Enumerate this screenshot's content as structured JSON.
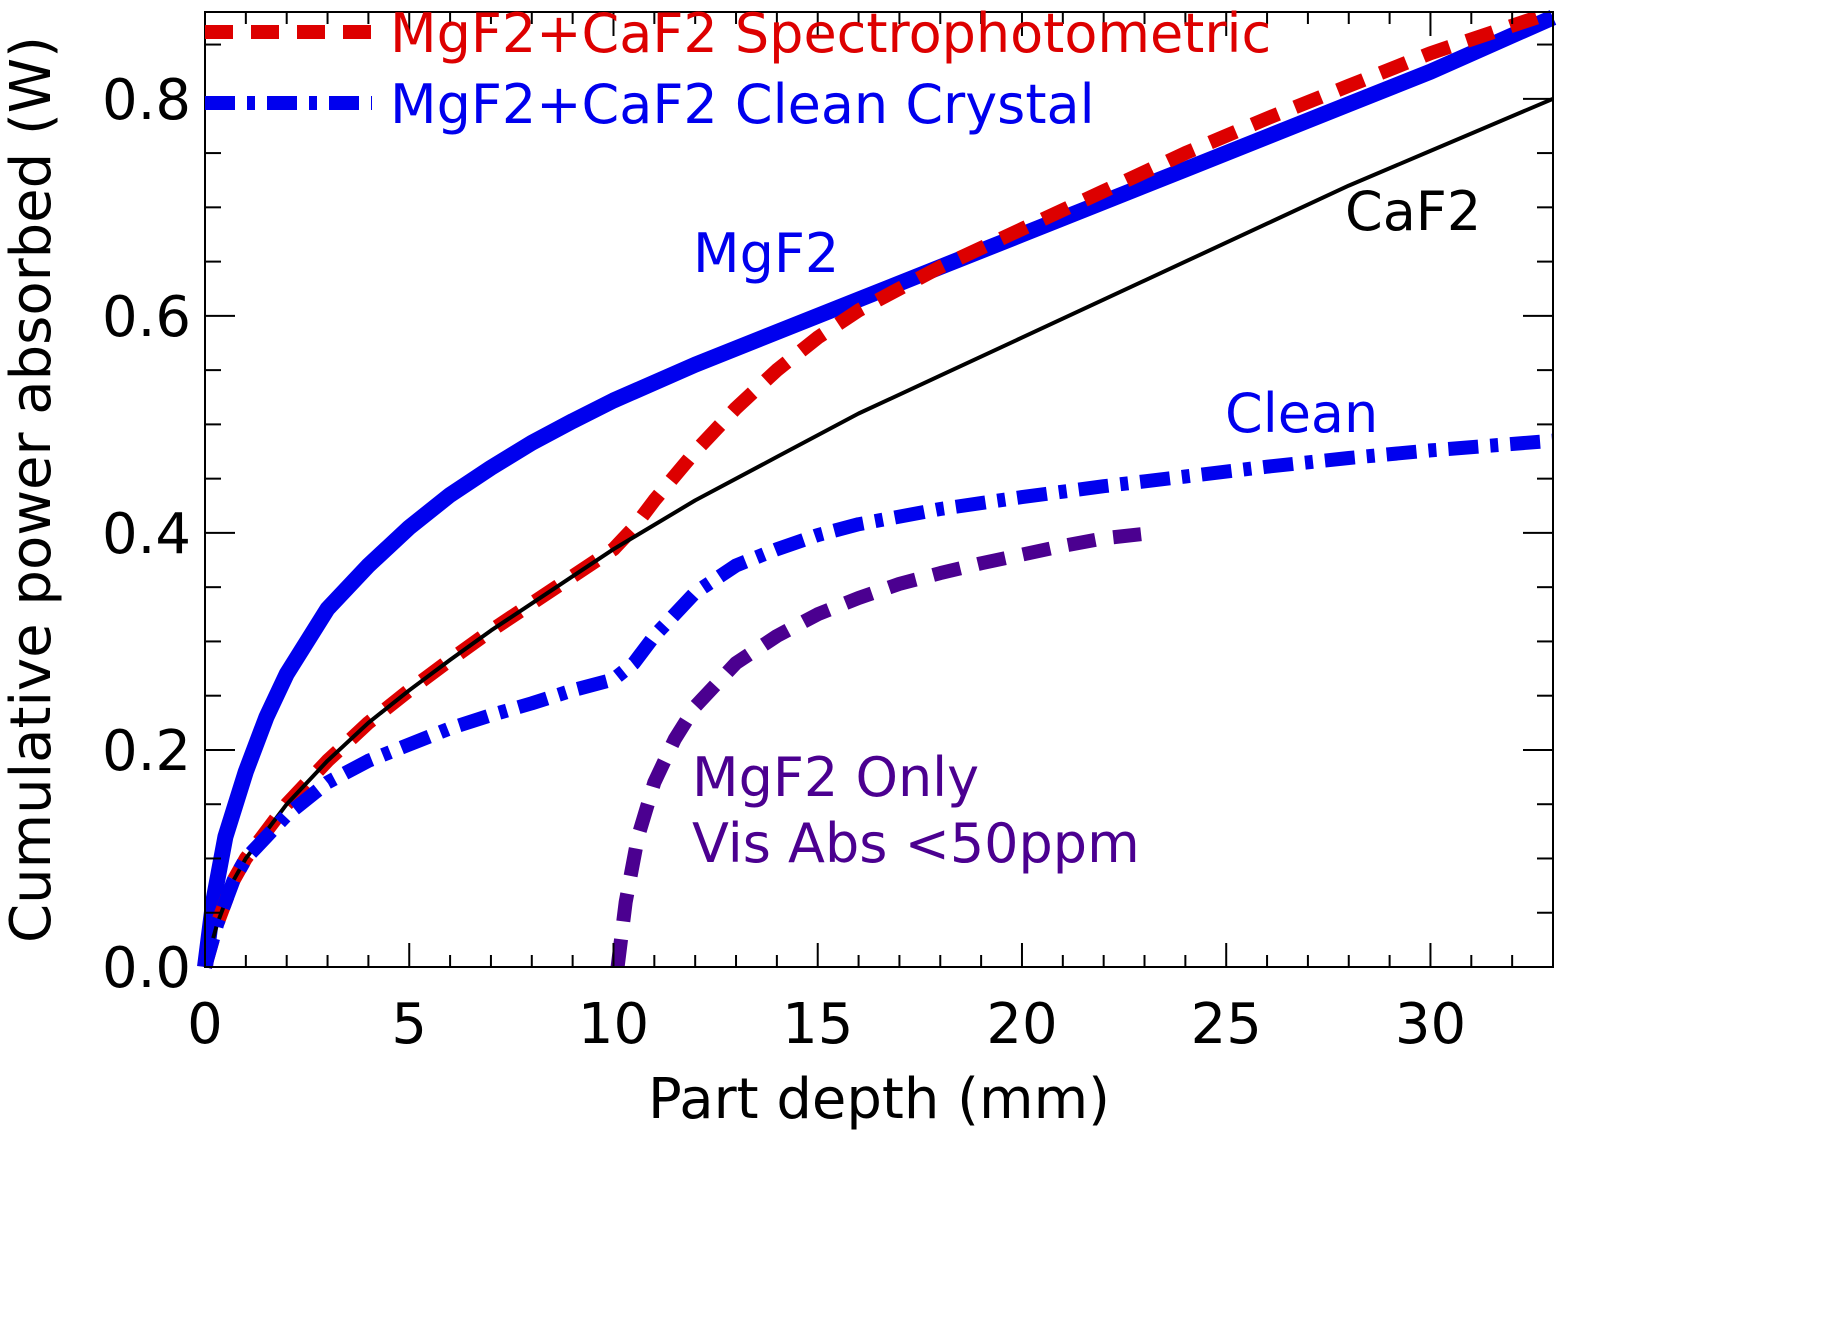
{
  "chart_data": {
    "type": "line",
    "title": "",
    "xlabel": "Part depth (mm)",
    "ylabel": "Cumulative power absorbed (W)",
    "xlim": [
      0,
      33
    ],
    "ylim": [
      0,
      0.88
    ],
    "x_ticks": [
      0,
      5,
      10,
      15,
      20,
      25,
      30
    ],
    "x_tick_labels": [
      "0",
      "5",
      "10",
      "15",
      "20",
      "25",
      "30"
    ],
    "y_ticks": [
      0.0,
      0.2,
      0.4,
      0.6,
      0.8
    ],
    "y_tick_labels": [
      "0.0",
      "0.2",
      "0.4",
      "0.6",
      "0.8"
    ],
    "legend": {
      "placement": "top-left",
      "entries": [
        {
          "label": "MgF2+CaF2 Spectrophotometric",
          "color": "#dd0000",
          "style": "dashed"
        },
        {
          "label": "MgF2+CaF2 Clean Crystal",
          "color": "#0000ee",
          "style": "dash-dot"
        }
      ]
    },
    "series": [
      {
        "name": "MgF2",
        "color": "#0000ee",
        "style": "solid-thick",
        "x": [
          0,
          0.2,
          0.5,
          1,
          1.5,
          2,
          3,
          4,
          5,
          6,
          7,
          8,
          9,
          10,
          12,
          14,
          16,
          18,
          20,
          22,
          24,
          26,
          28,
          30,
          33
        ],
        "y": [
          0,
          0.06,
          0.12,
          0.18,
          0.23,
          0.27,
          0.33,
          0.37,
          0.405,
          0.435,
          0.46,
          0.483,
          0.503,
          0.522,
          0.555,
          0.585,
          0.615,
          0.645,
          0.675,
          0.705,
          0.735,
          0.765,
          0.795,
          0.825,
          0.875
        ]
      },
      {
        "name": "MgF2+CaF2 Spectrophotometric",
        "color": "#dd0000",
        "style": "dashed",
        "x": [
          0,
          0.3,
          0.7,
          1,
          2,
          3,
          4,
          5,
          6,
          7,
          8,
          9,
          10,
          10.5,
          11,
          12,
          13,
          14,
          15,
          16,
          17,
          18,
          20,
          22,
          24,
          26,
          28,
          30,
          33
        ],
        "y": [
          0,
          0.04,
          0.08,
          0.1,
          0.15,
          0.19,
          0.225,
          0.255,
          0.283,
          0.31,
          0.335,
          0.36,
          0.385,
          0.405,
          0.43,
          0.475,
          0.515,
          0.55,
          0.58,
          0.605,
          0.625,
          0.645,
          0.68,
          0.715,
          0.75,
          0.782,
          0.812,
          0.842,
          0.88
        ]
      },
      {
        "name": "CaF2",
        "color": "#000000",
        "style": "solid-thin",
        "x": [
          0,
          0.3,
          0.7,
          1,
          2,
          3,
          4,
          5,
          6,
          7,
          8,
          9,
          10,
          12,
          14,
          16,
          18,
          20,
          22,
          24,
          26,
          28,
          30,
          33
        ],
        "y": [
          0,
          0.04,
          0.08,
          0.1,
          0.15,
          0.19,
          0.225,
          0.255,
          0.283,
          0.31,
          0.335,
          0.36,
          0.385,
          0.43,
          0.47,
          0.51,
          0.545,
          0.58,
          0.615,
          0.65,
          0.685,
          0.72,
          0.752,
          0.8
        ]
      },
      {
        "name": "MgF2+CaF2 Clean Crystal",
        "color": "#0000ee",
        "style": "dash-dot",
        "x": [
          0,
          0.3,
          0.7,
          1,
          1.5,
          2,
          3,
          4,
          5,
          6,
          7,
          8,
          9,
          10,
          10.5,
          11,
          12,
          13,
          14,
          15,
          16,
          18,
          20,
          22,
          24,
          26,
          28,
          30,
          33
        ],
        "y": [
          0,
          0.04,
          0.08,
          0.1,
          0.12,
          0.14,
          0.17,
          0.19,
          0.205,
          0.22,
          0.232,
          0.243,
          0.255,
          0.265,
          0.28,
          0.305,
          0.345,
          0.37,
          0.385,
          0.398,
          0.408,
          0.422,
          0.433,
          0.443,
          0.452,
          0.461,
          0.469,
          0.476,
          0.485
        ]
      },
      {
        "name": "MgF2 Only Vis Abs <50ppm",
        "color": "#4b0090",
        "style": "dashed",
        "x": [
          10.1,
          10.3,
          10.6,
          11,
          11.5,
          12,
          13,
          14,
          15,
          16,
          17,
          18,
          19,
          20,
          21,
          22,
          23.2
        ],
        "y": [
          0,
          0.06,
          0.12,
          0.17,
          0.21,
          0.24,
          0.28,
          0.305,
          0.325,
          0.34,
          0.353,
          0.363,
          0.372,
          0.38,
          0.388,
          0.395,
          0.4
        ]
      }
    ],
    "annotations": [
      {
        "text": "MgF2",
        "color": "#0000ee"
      },
      {
        "text": "CaF2",
        "color": "#000000"
      },
      {
        "text": "Clean",
        "color": "#0000ee"
      },
      {
        "text": "MgF2 Only",
        "color": "#4b0090"
      },
      {
        "text": "Vis Abs <50ppm",
        "color": "#4b0090"
      }
    ]
  }
}
